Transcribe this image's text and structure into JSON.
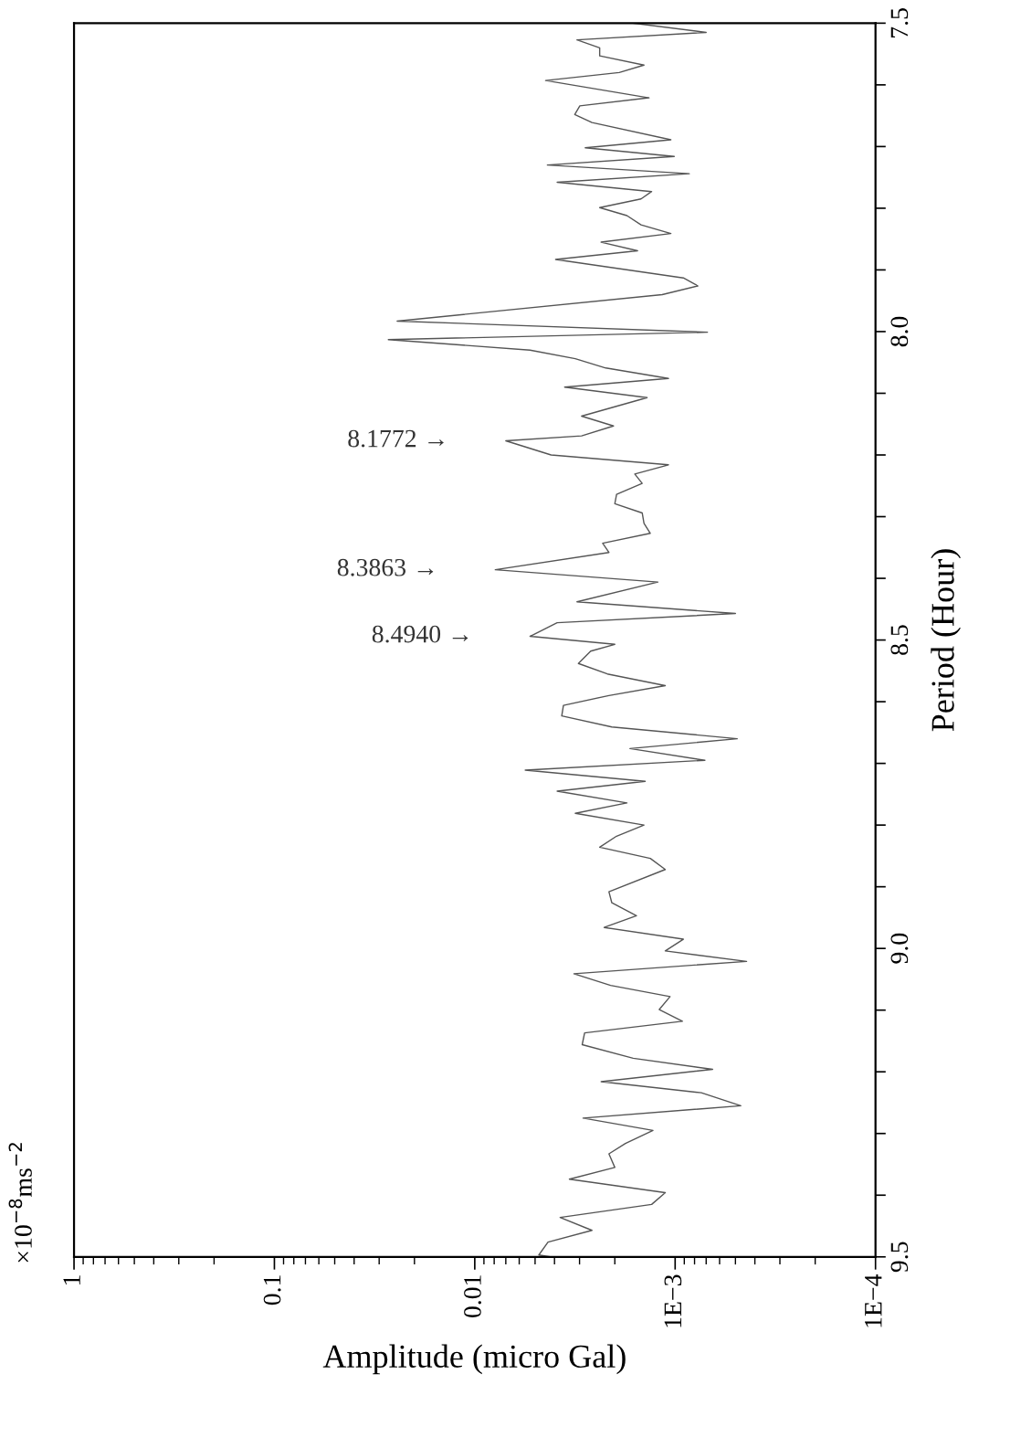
{
  "chart_data": {
    "type": "line",
    "xlabel": "Amplitude (micro Gal)",
    "ylabel": "Period (Hour)",
    "log": "x",
    "grid": false,
    "color": "#555555",
    "xlim": [
      1,
      0.0001
    ],
    "ylim": [
      9.5,
      7.5
    ],
    "yticks": [
      7.5,
      {
        "value": 7.6,
        "label": null
      },
      {
        "value": 7.7,
        "label": null
      },
      {
        "value": 7.8,
        "label": null
      },
      {
        "value": 7.9,
        "label": null
      },
      {
        "value": 8.0,
        "label": "8.0"
      },
      {
        "value": 8.1,
        "label": null
      },
      {
        "value": 8.2,
        "label": null
      },
      {
        "value": 8.3,
        "label": null
      },
      {
        "value": 8.4,
        "label": null
      },
      8.5,
      {
        "value": 8.6,
        "label": null
      },
      {
        "value": 8.7,
        "label": null
      },
      {
        "value": 8.8,
        "label": null
      },
      {
        "value": 8.9,
        "label": null
      },
      {
        "value": 9.0,
        "label": "9.0"
      },
      {
        "value": 9.1,
        "label": null
      },
      {
        "value": 9.2,
        "label": null
      },
      {
        "value": 9.3,
        "label": null
      },
      {
        "value": 9.4,
        "label": null
      },
      9.5
    ],
    "xticks": [
      1,
      0.1,
      0.01,
      {
        "value": 0.001,
        "label": "1E−3"
      },
      {
        "value": 0.0001,
        "label": "1E−4"
      }
    ],
    "values": [
      7.5,
      7.515,
      7.527,
      7.54,
      7.553,
      7.568,
      7.58,
      7.593,
      7.621,
      7.634,
      7.648,
      7.661,
      7.689,
      7.702,
      7.716,
      7.73,
      7.744,
      7.758,
      7.773,
      7.785,
      7.799,
      7.812,
      7.827,
      7.841,
      7.855,
      7.869,
      7.883,
      7.913,
      7.926,
      7.94,
      7.983,
      8.001,
      8.013,
      8.03,
      8.044,
      8.059,
      8.076,
      8.09,
      8.107,
      8.137,
      8.153,
      8.169,
      8.177,
      8.2,
      8.216,
      8.231,
      8.246,
      8.264,
      8.279,
      8.294,
      8.311,
      8.327,
      8.343,
      8.358,
      8.386,
      8.406,
      8.438,
      8.457,
      8.472,
      8.494,
      8.507,
      8.518,
      8.538,
      8.555,
      8.574,
      8.59,
      8.606,
      8.623,
      8.641,
      8.66,
      8.676,
      8.695,
      8.711,
      8.729,
      8.745,
      8.764,
      8.781,
      8.8,
      8.818,
      8.836,
      8.854,
      8.872,
      8.908,
      8.926,
      8.947,
      8.966,
      8.985,
      9.004,
      9.021,
      9.041,
      9.06,
      9.078,
      9.099,
      9.118,
      9.137,
      9.156,
      9.178,
      9.196,
      9.216,
      9.234,
      9.255,
      9.275,
      9.295,
      9.316,
      9.333,
      9.355,
      9.374,
      9.396,
      9.415,
      9.436,
      9.457,
      9.476,
      9.497,
      9.5
    ],
    "x": [
      0.00162,
      0.0007,
      0.00309,
      0.00238,
      0.00238,
      0.00143,
      0.0019,
      0.00443,
      0.00135,
      0.00299,
      0.00317,
      0.0026,
      0.00105,
      0.00281,
      0.00101,
      0.00434,
      0.00085,
      0.00388,
      0.00131,
      0.00148,
      0.00238,
      0.00174,
      0.00148,
      0.00105,
      0.00234,
      0.00154,
      0.00395,
      0.00091,
      0.00077,
      0.00116,
      0.0244,
      0.00069,
      0.027,
      0.0053,
      0.00315,
      0.00222,
      0.00108,
      0.00356,
      0.00138,
      0.00293,
      0.00203,
      0.00293,
      0.007,
      0.00416,
      0.00108,
      0.00159,
      0.00146,
      0.00196,
      0.002,
      0.00146,
      0.00143,
      0.00133,
      0.0023,
      0.00214,
      0.0079,
      0.00122,
      0.00309,
      0.0005,
      0.00388,
      0.0053,
      0.002,
      0.00264,
      0.00304,
      0.00218,
      0.00112,
      0.00214,
      0.00361,
      0.00368,
      0.00207,
      0.00049,
      0.00168,
      0.00071,
      0.0056,
      0.00141,
      0.00388,
      0.00174,
      0.00315,
      0.00143,
      0.00196,
      0.00238,
      0.00133,
      0.00112,
      0.00214,
      0.00207,
      0.00156,
      0.00226,
      0.00091,
      0.00112,
      0.00044,
      0.0032,
      0.0021,
      0.00106,
      0.0012,
      0.00092,
      0.00283,
      0.00291,
      0.00162,
      0.00065,
      0.00234,
      0.00074,
      0.00047,
      0.00288,
      0.00129,
      0.00177,
      0.00214,
      0.002,
      0.00337,
      0.00112,
      0.00131,
      0.00375,
      0.0026,
      0.00431,
      0.00479,
      0.00416
    ],
    "annotations": [
      {
        "text": "8.4940 →",
        "x": 0.0053,
        "y": 8.494
      },
      {
        "text": "8.3863 →",
        "x": 0.0079,
        "y": 8.386
      },
      {
        "text": "8.1772 →",
        "x": 0.007,
        "y": 8.177
      },
      "×10$^{−8}$ms$^{−2}$"
    ]
  }
}
